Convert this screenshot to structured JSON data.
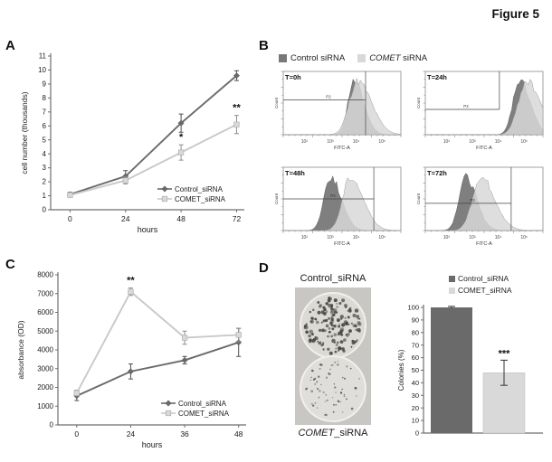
{
  "figure_title": "Figure 5",
  "colors": {
    "control": "#6a6a6a",
    "comet": "#c9c9c9",
    "comet_fill": "#d9d9d9",
    "hist_dark": "#787878",
    "hist_light": "#d8d8d8",
    "axis": "#6e6e6e",
    "text": "#1a1a1a"
  },
  "panel_a": {
    "label": "A",
    "chart_data": {
      "type": "line",
      "x": [
        0,
        24,
        48,
        72
      ],
      "xlabel": "hours",
      "ylabel": "cell number (thousands)",
      "ylim": [
        0,
        11
      ],
      "ytick_step": 1,
      "series": [
        {
          "name": "Control_siRNA",
          "values": [
            1.1,
            2.4,
            6.2,
            9.6
          ],
          "errors": [
            0.15,
            0.4,
            0.65,
            0.35
          ],
          "color": "#6a6a6a",
          "marker": "diamond"
        },
        {
          "name": "COMET_siRNA",
          "values": [
            1.05,
            2.1,
            4.1,
            6.1
          ],
          "errors": [
            0.15,
            0.25,
            0.55,
            0.65
          ],
          "color": "#c9c9c9",
          "marker": "square"
        }
      ],
      "annotations": [
        {
          "xi": 2,
          "si": 1,
          "text": "*"
        },
        {
          "xi": 3,
          "si": 1,
          "text": "**"
        }
      ],
      "legend_position": "bottom-right",
      "grid": false
    }
  },
  "panel_b": {
    "label": "B",
    "legend": [
      {
        "italic": "",
        "label": "Control siRNA"
      },
      {
        "italic": "COMET",
        "label": " siRNA"
      }
    ],
    "axis": {
      "xlabel": "FITC-A",
      "ylabel": "Count",
      "xticks": [
        "10²",
        "10³",
        "10⁴",
        "10⁵"
      ]
    },
    "histograms": [
      {
        "title": "T=0h",
        "gate_label": "P2",
        "dark_peak": 0.6,
        "light_peak": 0.63,
        "dark_sigma": 0.05,
        "light_sigma": 0.07,
        "gate_x": 0.7,
        "gate_y": 0.45,
        "vline_full": true
      },
      {
        "title": "T=24h",
        "gate_label": "P2",
        "dark_peak": 0.8,
        "light_peak": 0.86,
        "dark_sigma": 0.055,
        "light_sigma": 0.07,
        "gate_x": 0.63,
        "gate_y": 0.6,
        "vline_full": false
      },
      {
        "title": "T=48h",
        "gate_label": "P2",
        "dark_peak": 0.4,
        "light_peak": 0.57,
        "dark_sigma": 0.055,
        "light_sigma": 0.065,
        "gate_x": 0.77,
        "gate_y": 0.5,
        "vline_full": true
      },
      {
        "title": "T=72h",
        "gate_label": "P2",
        "dark_peak": 0.34,
        "light_peak": 0.47,
        "dark_sigma": 0.055,
        "light_sigma": 0.07,
        "gate_x": 0.73,
        "gate_y": 0.57,
        "vline_full": true
      }
    ]
  },
  "panel_c": {
    "label": "C",
    "chart_data": {
      "type": "line",
      "x": [
        0,
        24,
        36,
        48
      ],
      "xlabel": "hours",
      "ylabel": "absorbance (OD)",
      "ylim": [
        0,
        8000
      ],
      "ytick_step": 1000,
      "series": [
        {
          "name": "Control_siRNA",
          "values": [
            1550,
            2850,
            3450,
            4400
          ],
          "errors": [
            250,
            400,
            200,
            750
          ],
          "color": "#6a6a6a",
          "marker": "diamond"
        },
        {
          "name": "COMET_siRNA",
          "values": [
            1700,
            7100,
            4650,
            4800
          ],
          "errors": [
            150,
            200,
            350,
            350
          ],
          "color": "#c9c9c9",
          "marker": "square"
        }
      ],
      "annotations": [
        {
          "xi": 1,
          "si": 1,
          "text": "**"
        }
      ],
      "legend_position": "bottom-right",
      "grid": false
    }
  },
  "panel_d": {
    "label": "D",
    "dish_top_label": "Control_siRNA",
    "dish_bottom_italic": "COMET",
    "dish_bottom_rest": "_siRNA",
    "dishes": {
      "control_colonies": 155,
      "comet_colonies": 62
    },
    "legend": [
      {
        "label": "Control_siRNA"
      },
      {
        "label": "COMET_siRNA"
      }
    ],
    "chart_data": {
      "type": "bar",
      "categories": [
        "Control_siRNA",
        "COMET_siRNA"
      ],
      "values": [
        100,
        48
      ],
      "errors": [
        0.8,
        10
      ],
      "ylabel": "Colonies (%)",
      "ylim": [
        0,
        100
      ],
      "ytick_step": 10,
      "annotations": [
        {
          "xi": 1,
          "text": "***"
        }
      ]
    }
  }
}
